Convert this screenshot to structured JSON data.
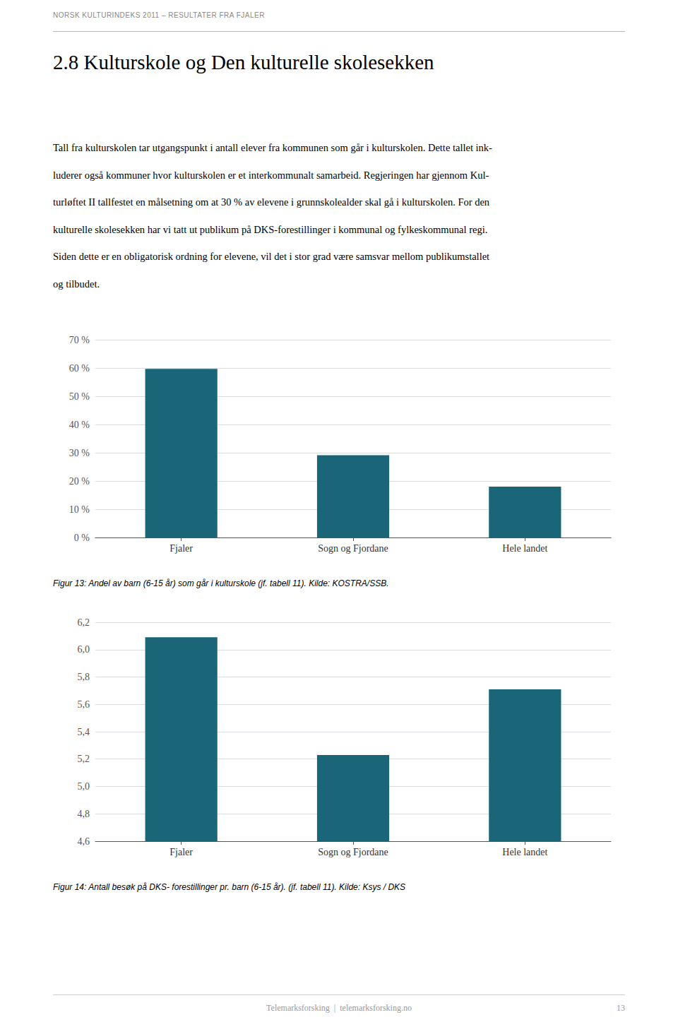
{
  "page": {
    "header": "NORSK KULTURINDEKS 2011 – RESULTATER FRA FJALER",
    "title": "2.8 Kulturskole og Den kulturelle skolesekken",
    "body": [
      "Tall fra kulturskolen tar utgangspunkt i antall elever fra kommunen som går i kulturskolen. Dette tallet ink-",
      "luderer også kommuner hvor kulturskolen er et interkommunalt samarbeid. Regjeringen har gjennom Kul-",
      "turløftet II tallfestet en målsetning om at 30 % av elevene i grunnskolealder skal gå i kulturskolen. For den",
      "kulturelle skolesekken har vi tatt ut publikum på DKS-forestillinger i kommunal og fylkeskommunal regi.",
      "Siden dette er en obligatorisk ordning for elevene, vil det i stor grad være samsvar mellom publikumstallet",
      "og tilbudet."
    ],
    "footer": "Telemarksforsking  |  telemarksforsking.no",
    "page_number": "13"
  },
  "chart_data": [
    {
      "type": "bar",
      "title": "Figur 13: Andel av barn (6-15 år) som går i kulturskole (jf. tabell 11). Kilde: KOSTRA/SSB.",
      "categories": [
        "Fjaler",
        "Sogn og Fjordane",
        "Hele landet"
      ],
      "values": [
        59.7,
        29.1,
        18.0
      ],
      "color": "#1a6678",
      "ylim": [
        0,
        70
      ],
      "yticks": [
        {
          "value": 0,
          "label": "0 %"
        },
        {
          "value": 10,
          "label": "10 %"
        },
        {
          "value": 20,
          "label": "20 %"
        },
        {
          "value": 30,
          "label": "30 %"
        },
        {
          "value": 40,
          "label": "40 %"
        },
        {
          "value": 50,
          "label": "50 %"
        },
        {
          "value": 60,
          "label": "60 %"
        },
        {
          "value": 70,
          "label": "70 %"
        }
      ],
      "grid": true
    },
    {
      "type": "bar",
      "title": "Figur 14: Antall besøk på DKS- forestillinger pr. barn (6-15 år). (jf. tabell 11). Kilde: Ksys / DKS",
      "categories": [
        "Fjaler",
        "Sogn og Fjordane",
        "Hele landet"
      ],
      "values": [
        6.09,
        5.23,
        5.71
      ],
      "color": "#1a6678",
      "ylim": [
        4.6,
        6.2
      ],
      "yticks": [
        {
          "value": 4.6,
          "label": "4,6"
        },
        {
          "value": 4.8,
          "label": "4,8"
        },
        {
          "value": 5.0,
          "label": "5,0"
        },
        {
          "value": 5.2,
          "label": "5,2"
        },
        {
          "value": 5.4,
          "label": "5,4"
        },
        {
          "value": 5.6,
          "label": "5,6"
        },
        {
          "value": 5.8,
          "label": "5,8"
        },
        {
          "value": 6.0,
          "label": "6,0"
        },
        {
          "value": 6.2,
          "label": "6,2"
        }
      ],
      "grid": true
    }
  ]
}
